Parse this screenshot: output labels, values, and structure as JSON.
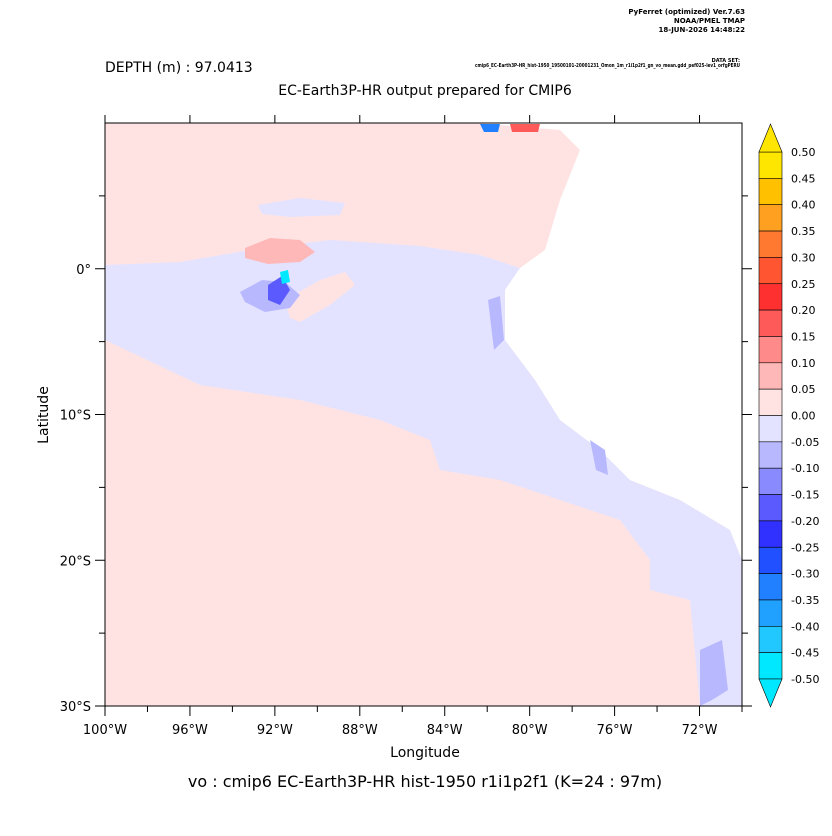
{
  "header": {
    "lines": [
      "PyFerret (optimized) Ver.7.63",
      "NOAA/PMEL TMAP",
      "18-JUN-2026 14:48:22"
    ],
    "data_set_label": "DATA SET:",
    "dataset": "cmip6_EC-Earth3P-HR_hist-1950_19500101-20001231_Omon_1m_r1i1p2f1_gn_vo_mean.gdd_pef025-lev1_orfgPERU"
  },
  "chart_data": {
    "type": "map",
    "title": "EC-Earth3P-HR output prepared for CMIP6",
    "subtitle": "DEPTH (m) : 97.0413",
    "xlabel": "Longitude",
    "ylabel": "Latitude",
    "caption": "vo : cmip6 EC-Earth3P-HR hist-1950 r1i1p2f1    (K=24 : 97m)",
    "xlim": [
      -100,
      -70
    ],
    "ylim": [
      -30,
      10
    ],
    "xticks": [
      {
        "value": -100,
        "label": "100°W"
      },
      {
        "value": -96,
        "label": "96°W"
      },
      {
        "value": -92,
        "label": "92°W"
      },
      {
        "value": -88,
        "label": "88°W"
      },
      {
        "value": -84,
        "label": "84°W"
      },
      {
        "value": -80,
        "label": "80°W"
      },
      {
        "value": -76,
        "label": "76°W"
      },
      {
        "value": -72,
        "label": "72°W"
      }
    ],
    "xminor": [
      -98,
      -94,
      -90,
      -86,
      -82,
      -78,
      -74,
      -70
    ],
    "yticks": [
      {
        "value": 0,
        "label": "0°"
      },
      {
        "value": -10,
        "label": "10°S"
      },
      {
        "value": -20,
        "label": "20°S"
      },
      {
        "value": -30,
        "label": "30°S"
      }
    ],
    "yminor": [
      5,
      -5,
      -15,
      -25
    ],
    "colorbar": {
      "levels": [
        {
          "value": 0.5,
          "label": "0.50"
        },
        {
          "value": 0.45,
          "label": "0.45"
        },
        {
          "value": 0.4,
          "label": "0.40"
        },
        {
          "value": 0.35,
          "label": "0.35"
        },
        {
          "value": 0.3,
          "label": "0.30"
        },
        {
          "value": 0.25,
          "label": "0.25"
        },
        {
          "value": 0.2,
          "label": "0.20"
        },
        {
          "value": 0.15,
          "label": "0.15"
        },
        {
          "value": 0.1,
          "label": "0.10"
        },
        {
          "value": 0.05,
          "label": "0.05"
        },
        {
          "value": 0,
          "label": "0.00"
        },
        {
          "value": -0.05,
          "label": "-0.05"
        },
        {
          "value": -0.1,
          "label": "-0.10"
        },
        {
          "value": -0.15,
          "label": "-0.15"
        },
        {
          "value": -0.2,
          "label": "-0.20"
        },
        {
          "value": -0.25,
          "label": "-0.25"
        },
        {
          "value": -0.3,
          "label": "-0.30"
        },
        {
          "value": -0.35,
          "label": "-0.35"
        },
        {
          "value": -0.4,
          "label": "-0.40"
        },
        {
          "value": -0.45,
          "label": "-0.45"
        },
        {
          "value": -0.5,
          "label": "-0.50"
        }
      ],
      "colors": [
        "#ffe600",
        "#ffc000",
        "#ffa020",
        "#ff7a30",
        "#ff5530",
        "#ff3030",
        "#ff5a5a",
        "#ff8a8a",
        "#ffb8b8",
        "#ffe3e3",
        "#e3e3ff",
        "#b8b8ff",
        "#8a8aff",
        "#5a5aff",
        "#3030ff",
        "#2050ff",
        "#2080ff",
        "#20a0ff",
        "#20c8ff",
        "#00e8ff"
      ],
      "over_color": "#ffe600",
      "under_color": "#00e8ff"
    }
  }
}
